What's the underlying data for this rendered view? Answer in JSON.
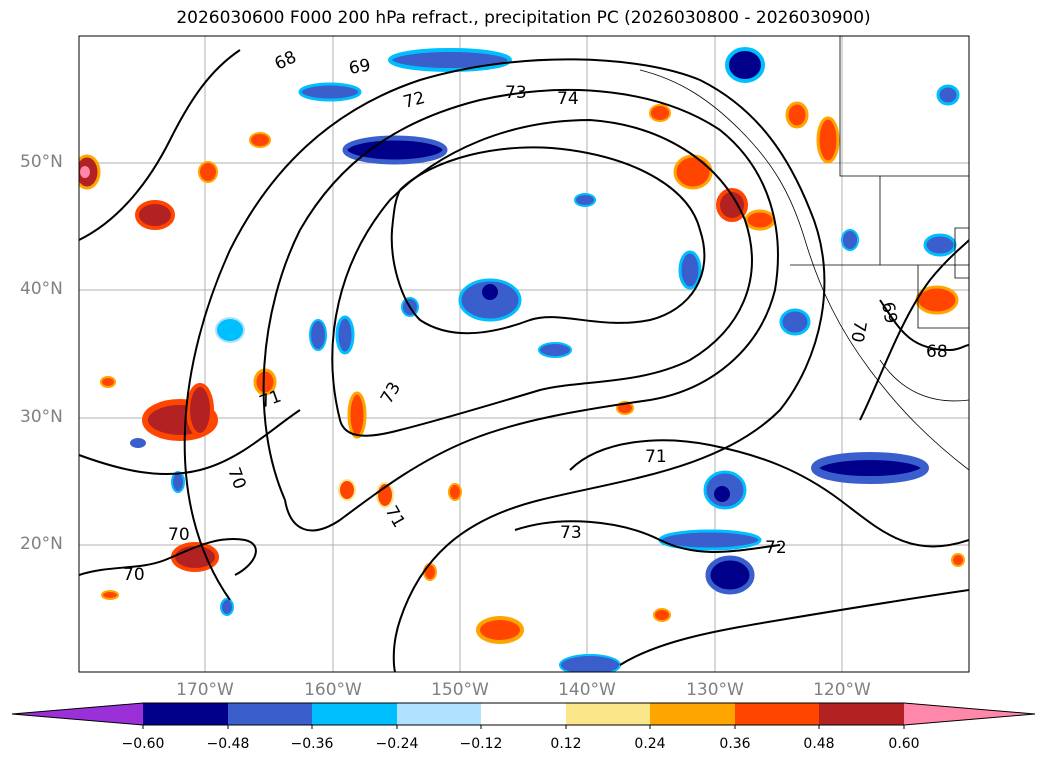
{
  "title": "2026030600 F000 200 hPa refract., precipitation PC (2026030800 - 2026030900)",
  "lat_labels": [
    "50°N",
    "40°N",
    "30°N",
    "20°N"
  ],
  "lon_labels": [
    "170°W",
    "160°W",
    "150°W",
    "140°W",
    "130°W",
    "120°W"
  ],
  "contour_labels": [
    "68",
    "69",
    "72",
    "73",
    "74",
    "71",
    "73",
    "70",
    "71",
    "73",
    "70",
    "70",
    "71",
    "72",
    "69",
    "70",
    "68"
  ],
  "colorbar": {
    "ticks": [
      "−0.60",
      "−0.48",
      "−0.36",
      "−0.24",
      "−0.12",
      "0.12",
      "0.24",
      "0.36",
      "0.48",
      "0.60"
    ],
    "colors": [
      "#9b30d9",
      "#00008b",
      "#3a5fcd",
      "#00bfff",
      "#b0e2ff",
      "#ffffff",
      "#fce68a",
      "#ffa500",
      "#ff4500",
      "#b22222",
      "#ff88aa"
    ]
  }
}
